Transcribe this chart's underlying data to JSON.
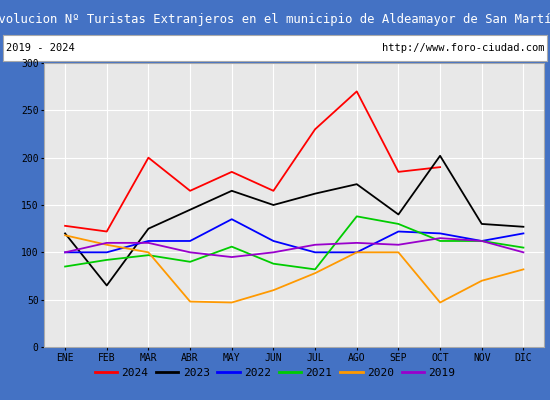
{
  "title": "Evolucion Nº Turistas Extranjeros en el municipio de Aldeamayor de San Martín",
  "subtitle_left": "2019 - 2024",
  "subtitle_right": "http://www.foro-ciudad.com",
  "months": [
    "ENE",
    "FEB",
    "MAR",
    "ABR",
    "MAY",
    "JUN",
    "JUL",
    "AGO",
    "SEP",
    "OCT",
    "NOV",
    "DIC"
  ],
  "ylim": [
    0,
    300
  ],
  "yticks": [
    0,
    50,
    100,
    150,
    200,
    250,
    300
  ],
  "series": {
    "2024": {
      "values": [
        128,
        122,
        200,
        165,
        185,
        165,
        230,
        270,
        185,
        190,
        null,
        null
      ],
      "color": "#ff0000"
    },
    "2023": {
      "values": [
        120,
        65,
        125,
        145,
        165,
        150,
        162,
        172,
        140,
        202,
        130,
        127
      ],
      "color": "#000000"
    },
    "2022": {
      "values": [
        100,
        100,
        112,
        112,
        135,
        112,
        100,
        100,
        122,
        120,
        112,
        120
      ],
      "color": "#0000ff"
    },
    "2021": {
      "values": [
        85,
        92,
        97,
        90,
        106,
        88,
        82,
        138,
        130,
        112,
        112,
        105
      ],
      "color": "#00cc00"
    },
    "2020": {
      "values": [
        118,
        108,
        100,
        48,
        47,
        60,
        78,
        100,
        100,
        47,
        70,
        82
      ],
      "color": "#ff9900"
    },
    "2019": {
      "values": [
        100,
        110,
        110,
        100,
        95,
        100,
        108,
        110,
        108,
        115,
        112,
        100
      ],
      "color": "#9900cc"
    }
  },
  "legend_order": [
    "2024",
    "2023",
    "2022",
    "2021",
    "2020",
    "2019"
  ],
  "title_bg_color": "#4472c4",
  "title_fg_color": "#ffffff",
  "plot_bg_color": "#e8e8e8",
  "grid_color": "#ffffff",
  "outer_border_color": "#4472c4"
}
